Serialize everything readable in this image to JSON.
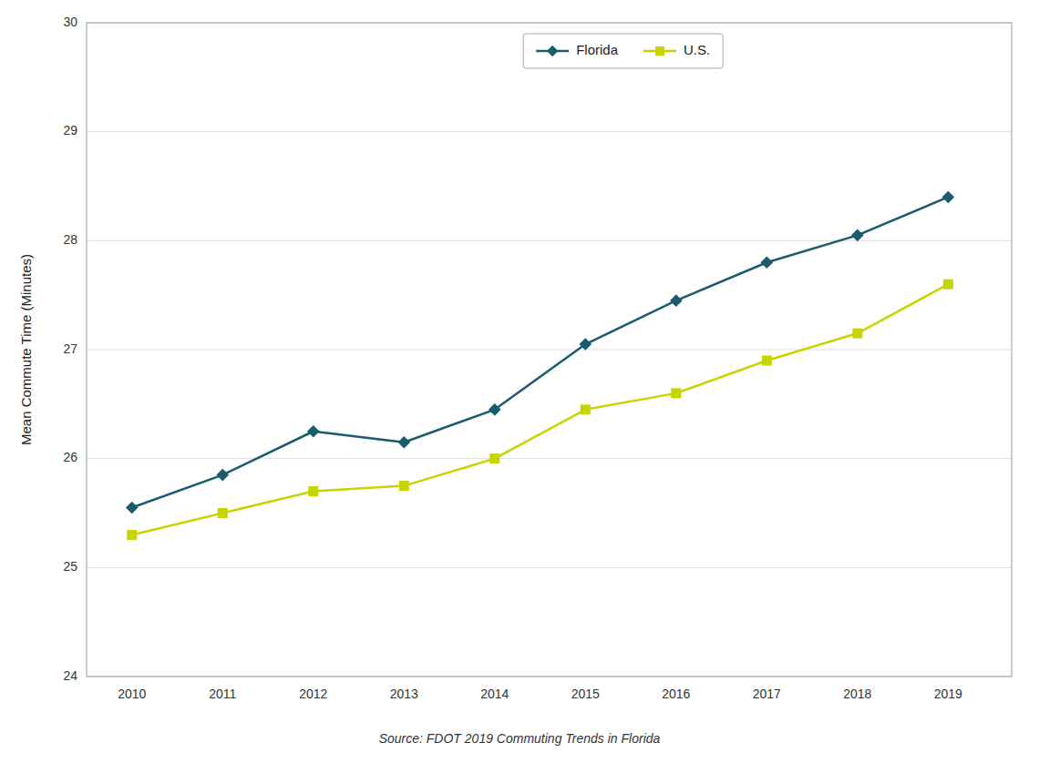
{
  "chart_data": {
    "type": "line",
    "ylabel": "Mean Commute Time (Minutes)",
    "source": "Source: FDOT 2019 Commuting Trends in Florida",
    "x": [
      2010,
      2011,
      2012,
      2013,
      2014,
      2015,
      2016,
      2017,
      2018,
      2019
    ],
    "series": [
      {
        "name": "Florida",
        "color": "#1a5c6e",
        "marker": "diamond",
        "values": [
          25.55,
          25.85,
          26.25,
          26.15,
          26.45,
          27.05,
          27.45,
          27.8,
          28.05,
          28.4
        ]
      },
      {
        "name": "U.S.",
        "color": "#c8d400",
        "marker": "square",
        "values": [
          25.3,
          25.5,
          25.7,
          25.75,
          26.0,
          26.45,
          26.6,
          26.9,
          27.15,
          27.6
        ]
      }
    ],
    "xlim": [
      2009.5,
      2019.7
    ],
    "xticks": [
      2010,
      2011,
      2012,
      2013,
      2014,
      2015,
      2016,
      2017,
      2018,
      2019
    ],
    "ylim": [
      24,
      30
    ],
    "yticks": [
      24,
      25,
      26,
      27,
      28,
      29,
      30
    ],
    "grid": "y",
    "legend": "top"
  }
}
